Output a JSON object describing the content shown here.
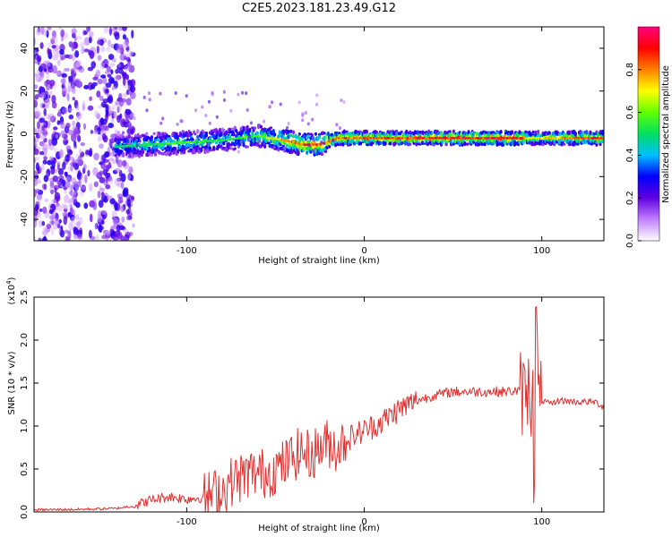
{
  "title": "C2E5.2023.181.23.49.G12",
  "colors": {
    "snr_line": "#e03030",
    "axis": "#000000"
  },
  "chart_data": [
    {
      "type": "heatmap",
      "xlabel": "Height of straight line (km)",
      "ylabel": "Frequency (Hz)",
      "xlim": [
        -186,
        135
      ],
      "ylim": [
        -50,
        50
      ],
      "xticks": [
        "-100",
        "0",
        "100"
      ],
      "xtick_values": [
        -100,
        0,
        100
      ],
      "yticks": [
        "40",
        "20",
        "0",
        "-20",
        "-40"
      ],
      "ytick_values": [
        40,
        20,
        0,
        -20,
        -40
      ],
      "colorbar": {
        "label": "Normalized spectral amplitude",
        "range": [
          0.0,
          1.0
        ],
        "ticks": [
          "0.0",
          "0.2",
          "0.4",
          "0.6",
          "0.8"
        ],
        "tick_values": [
          0.0,
          0.2,
          0.4,
          0.6,
          0.8
        ],
        "colors": [
          "#ffffff",
          "#c080ff",
          "#6000e0",
          "#0000ff",
          "#00c0ff",
          "#00e060",
          "#60ff00",
          "#ffff00",
          "#ff8000",
          "#ff0000",
          "#ff0080"
        ]
      },
      "ridge": {
        "x": [
          -140,
          -120,
          -100,
          -80,
          -60,
          -45,
          -35,
          -25,
          -15,
          0,
          20,
          50,
          90,
          93,
          135
        ],
        "frequency": [
          -6,
          -5,
          -4,
          -3,
          -1,
          -3,
          -5,
          -5,
          -2,
          -2,
          -2,
          -2,
          -2,
          -2,
          -2
        ],
        "peak_amplitude": [
          0.5,
          0.55,
          0.6,
          0.55,
          0.6,
          0.8,
          0.9,
          0.9,
          0.85,
          0.9,
          0.9,
          0.95,
          0.95,
          0.7,
          0.95
        ]
      }
    },
    {
      "type": "line",
      "xlabel": "Height of straight line (km)",
      "ylabel": "SNR (10 * v/v)",
      "yscale_label": "(x10",
      "yscale_exp": "4",
      "yscale_close": ")",
      "xlim": [
        -186,
        135
      ],
      "ylim": [
        0,
        25000
      ],
      "xticks": [
        "-100",
        "0",
        "100"
      ],
      "xtick_values": [
        -100,
        0,
        100
      ],
      "yticks": [
        "0.0",
        "0.5",
        "1.0",
        "1.5",
        "2.0",
        "2.5"
      ],
      "ytick_values": [
        0,
        5000,
        10000,
        15000,
        20000,
        25000
      ],
      "series": [
        {
          "x": [
            -186,
            -160,
            -140,
            -130,
            -120,
            -110,
            -100,
            -90,
            -80,
            -75,
            -70,
            -65,
            -60,
            -55,
            -50,
            -45,
            -40,
            -35,
            -30,
            -25,
            -20,
            -15,
            -10,
            -5,
            0,
            10,
            20,
            30,
            40,
            50,
            60,
            70,
            80,
            85,
            88,
            90,
            92,
            94,
            95,
            96,
            97,
            98,
            100,
            105,
            110,
            120,
            130,
            135
          ],
          "y": [
            250,
            300,
            400,
            700,
            1400,
            1800,
            1500,
            1700,
            2500,
            3500,
            4000,
            4500,
            4500,
            4500,
            5000,
            5500,
            6500,
            7000,
            6500,
            7500,
            8000,
            7500,
            8500,
            9000,
            9500,
            10500,
            12000,
            13000,
            13600,
            14000,
            14000,
            14000,
            14000,
            14100,
            14000,
            13500,
            14500,
            13000,
            16000,
            4000,
            25000,
            12000,
            13000,
            12500,
            13000,
            12800,
            12800,
            12200
          ]
        }
      ]
    }
  ]
}
